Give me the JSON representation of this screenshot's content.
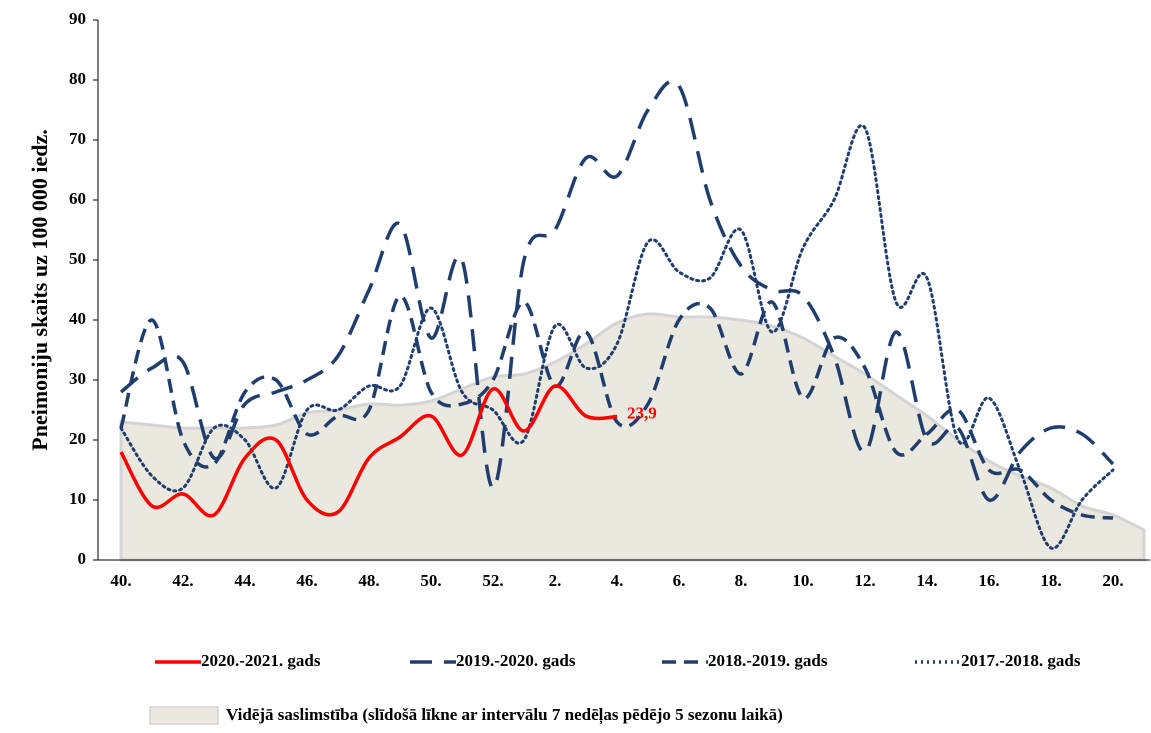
{
  "chart_data": {
    "type": "line",
    "y_label": "Pneimoniju skaits uz 100 000 iedz.",
    "categories": [
      "40.",
      null,
      "42.",
      null,
      "44.",
      null,
      "46.",
      null,
      "48.",
      null,
      "50.",
      null,
      "52.",
      null,
      "2.",
      null,
      "4.",
      null,
      "6.",
      null,
      "8.",
      null,
      "10.",
      null,
      "12.",
      null,
      "14.",
      null,
      "16.",
      null,
      "18.",
      null,
      "20.",
      null
    ],
    "ylim": [
      0,
      90
    ],
    "yticks": [
      0,
      10,
      20,
      30,
      40,
      50,
      60,
      70,
      80,
      90
    ],
    "series": [
      {
        "name": "2020.-2021. gads",
        "color": "#ff0000",
        "style": "solid",
        "values": [
          18,
          9,
          11,
          7.5,
          17,
          20,
          10,
          8,
          17,
          20.5,
          24,
          17.5,
          28.5,
          21.5,
          29,
          24,
          23.9,
          null,
          null,
          null,
          null,
          null,
          null,
          null,
          null,
          null,
          null,
          null,
          null,
          null,
          null,
          null,
          null,
          null
        ],
        "value_labels": [
          null,
          null,
          null,
          null,
          null,
          null,
          null,
          null,
          null,
          null,
          null,
          null,
          null,
          null,
          null,
          null,
          "23,9",
          null,
          null,
          null,
          null,
          null,
          null,
          null,
          null,
          null,
          null,
          null,
          null,
          null,
          null,
          null,
          null,
          null
        ]
      },
      {
        "name": "2019.-2020. gads",
        "color": "#1f3e6e",
        "style": "long-dash",
        "values": [
          28,
          32,
          33,
          17,
          26,
          28,
          30,
          34,
          45,
          56,
          37,
          50,
          12,
          50,
          55,
          67,
          64,
          75,
          79,
          60,
          49,
          45,
          44,
          34,
          18,
          38,
          20,
          22,
          10,
          18,
          22,
          21,
          16,
          null
        ]
      },
      {
        "name": "2018.-2019. gads",
        "color": "#1f3e6e",
        "style": "dash",
        "values": [
          22,
          40,
          20,
          16,
          28,
          30,
          21,
          24,
          25,
          44,
          28,
          26,
          30,
          43,
          29,
          38,
          23,
          26,
          40,
          42,
          31,
          43,
          27,
          37,
          32,
          18,
          21,
          25,
          15,
          15,
          10,
          7.5,
          7,
          null
        ]
      },
      {
        "name": "2017.-2018. gads",
        "color": "#1f3e6e",
        "style": "dot",
        "values": [
          22,
          14,
          12,
          22,
          20,
          12,
          25,
          25,
          29,
          29,
          42,
          28,
          25,
          20,
          39,
          32,
          36,
          53,
          48,
          47,
          55,
          38,
          52,
          60,
          72,
          43,
          47,
          20,
          27,
          15,
          2,
          10,
          15,
          null
        ]
      },
      {
        "name": "Vidējā saslimstība (slīdošā līkne ar intervālu 7 nedēļas pēdējo 5 sezonu laikā)",
        "color": "#ebe8df",
        "style": "area",
        "values": [
          23,
          22.5,
          22,
          22,
          22,
          22.5,
          24.5,
          25,
          26,
          25.8,
          26.5,
          28.5,
          30.5,
          31,
          33,
          36,
          39.5,
          41,
          40.5,
          40.5,
          40,
          39,
          37,
          34,
          31,
          27.5,
          24,
          20,
          16.5,
          14,
          12,
          9,
          7.5,
          5
        ]
      }
    ]
  }
}
